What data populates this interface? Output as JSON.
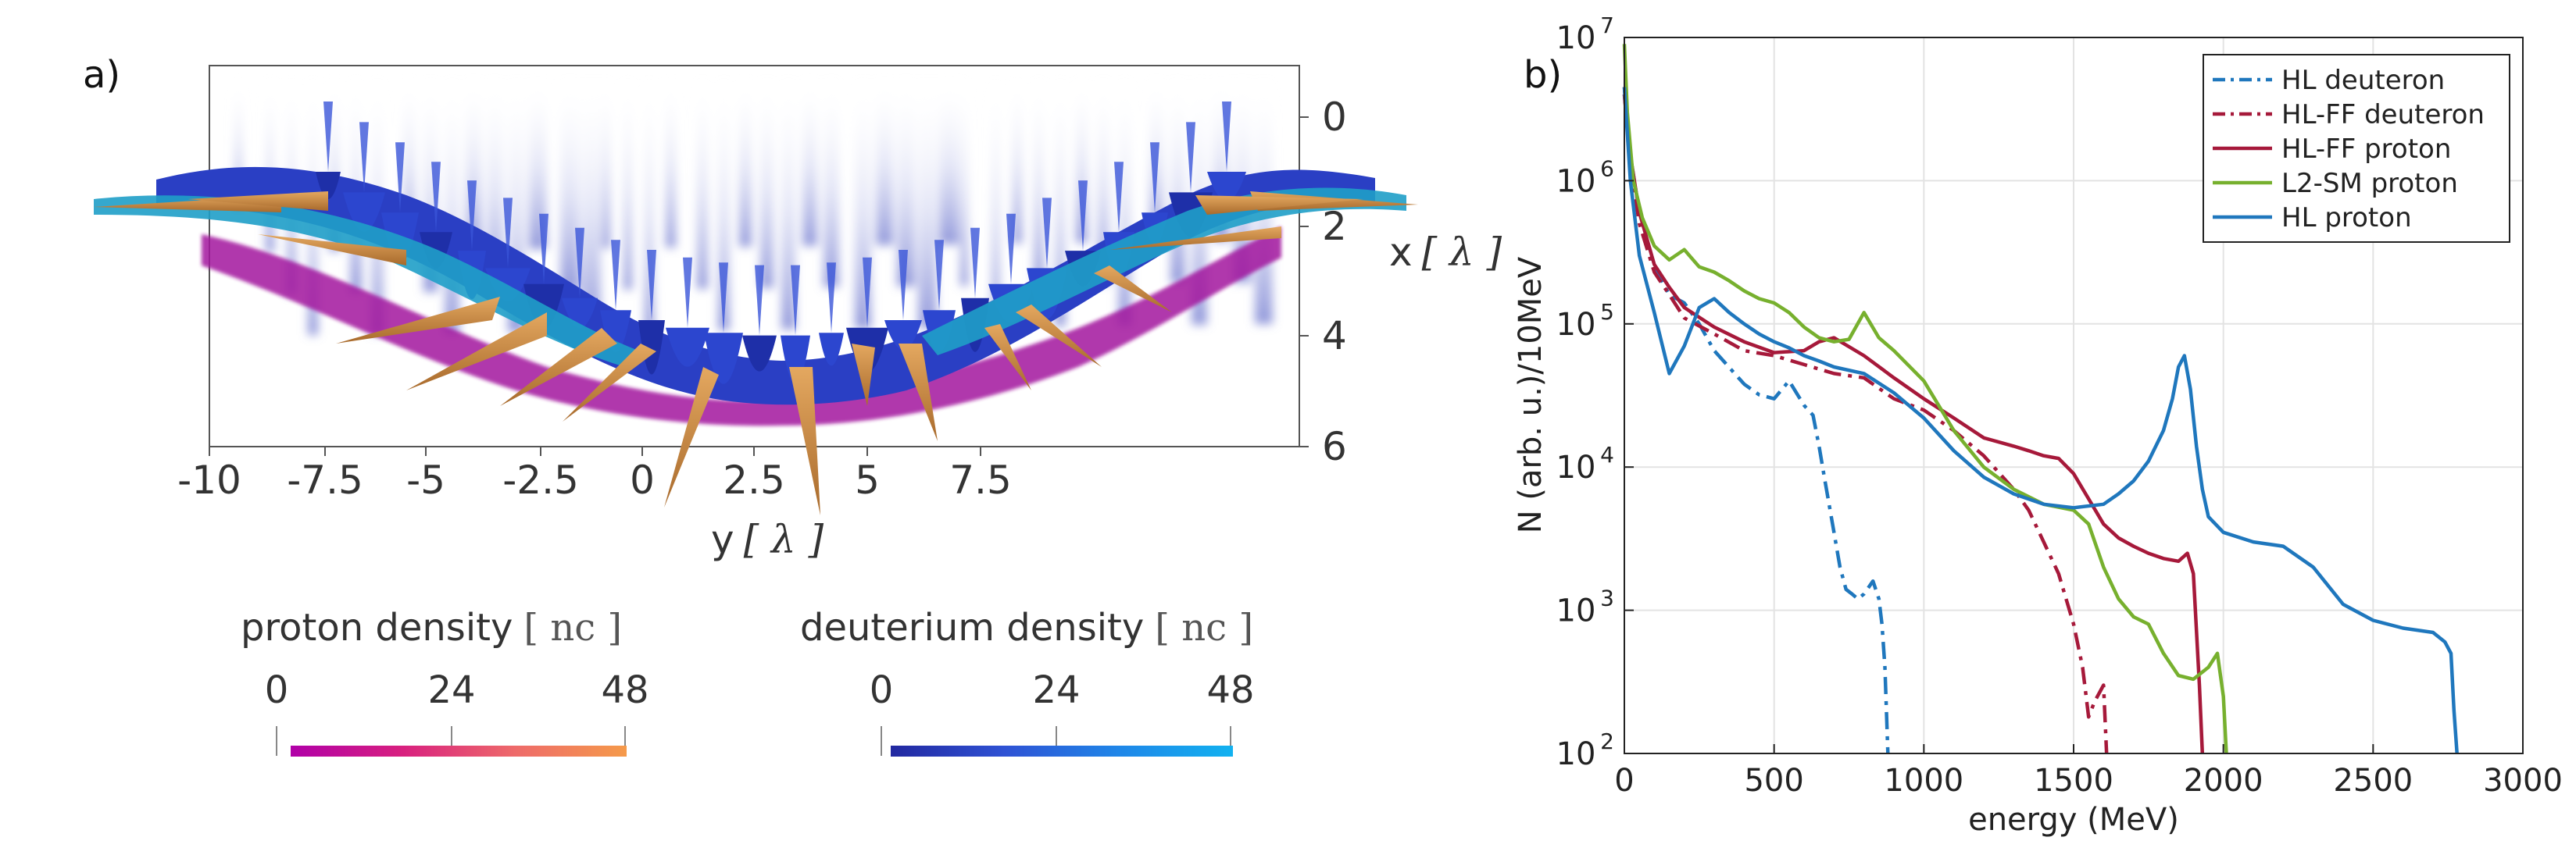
{
  "panel_a": {
    "label": "a)",
    "x_axis_label": "x",
    "y_axis_label": "y",
    "axis_unit": "[ λ ]",
    "x_ticks": [
      "0",
      "2",
      "4",
      "6"
    ],
    "y_ticks": [
      "-10",
      "-7.5",
      "-5",
      "-2.5",
      "0",
      "2.5",
      "5",
      "7.5"
    ],
    "colorbars": [
      {
        "label": "proton density",
        "unit": "[ nc ]",
        "ticks": [
          "0",
          "24",
          "48"
        ],
        "gradient": [
          "#b000a8",
          "#d8207f",
          "#ee6a6a",
          "#f59a4a"
        ]
      },
      {
        "label": "deuterium density",
        "unit": "[ nc ]",
        "ticks": [
          "0",
          "24",
          "48"
        ],
        "gradient": [
          "#2228a0",
          "#2f52d4",
          "#1f86e8",
          "#12b2f0"
        ]
      }
    ],
    "colors": {
      "proton_surface": "#c98a45",
      "deuteron_surface": "#2a3fc4",
      "cyan_surface": "#1f9fc8",
      "proton_haze": "#a3169e"
    }
  },
  "chart_data": {
    "type": "line",
    "panel_label": "b)",
    "xlabel": "energy (MeV)",
    "ylabel": "N (arb. u.)/10MeV",
    "xlim": [
      0,
      3000
    ],
    "ylim": [
      100,
      10000000
    ],
    "y_scale": "log",
    "x_ticks": [
      0,
      500,
      1000,
      1500,
      2000,
      2500,
      3000
    ],
    "x_tick_labels": [
      "0",
      "500",
      "1000",
      "1500",
      "2000",
      "2500",
      "3000"
    ],
    "y_ticks": [
      100,
      1000,
      10000,
      100000,
      1000000,
      10000000
    ],
    "y_tick_bases": [
      "10",
      "10",
      "10",
      "10",
      "10",
      "10"
    ],
    "y_tick_exponents": [
      "2",
      "3",
      "4",
      "5",
      "6",
      "7"
    ],
    "grid": true,
    "legend_position": "top-right",
    "series": [
      {
        "name": "HL deuteron",
        "color": "#1f77bd",
        "dash": "dashdot",
        "x": [
          0,
          20,
          50,
          100,
          150,
          200,
          250,
          300,
          400,
          450,
          500,
          550,
          600,
          630,
          650,
          670,
          700,
          720,
          740,
          760,
          780,
          800,
          830,
          850,
          860,
          870,
          880
        ],
        "y": [
          4000000,
          1500000,
          600000,
          250000,
          160000,
          140000,
          100000,
          65000,
          38000,
          32000,
          30000,
          40000,
          27000,
          23000,
          14000,
          8000,
          3500,
          2000,
          1400,
          1300,
          1200,
          1300,
          1600,
          1200,
          800,
          400,
          100
        ]
      },
      {
        "name": "HL-FF deuteron",
        "color": "#a6193a",
        "dash": "dashdot",
        "x": [
          0,
          20,
          50,
          100,
          150,
          200,
          300,
          400,
          500,
          600,
          700,
          800,
          900,
          1000,
          1100,
          1200,
          1300,
          1350,
          1400,
          1450,
          1500,
          1530,
          1550,
          1570,
          1600,
          1610
        ],
        "y": [
          4000000,
          1300000,
          500000,
          230000,
          160000,
          110000,
          85000,
          65000,
          60000,
          52000,
          45000,
          42000,
          30000,
          25000,
          18000,
          12000,
          7000,
          5000,
          3000,
          1800,
          800,
          400,
          180,
          230,
          300,
          100
        ]
      },
      {
        "name": "HL-FF proton",
        "color": "#a6193a",
        "dash": "solid",
        "x": [
          0,
          20,
          50,
          100,
          150,
          200,
          300,
          400,
          500,
          600,
          650,
          700,
          800,
          900,
          1000,
          1100,
          1200,
          1300,
          1350,
          1400,
          1450,
          1500,
          1550,
          1600,
          1650,
          1700,
          1750,
          1800,
          1850,
          1880,
          1900,
          1920,
          1930
        ],
        "y": [
          4500000,
          1500000,
          600000,
          260000,
          180000,
          130000,
          95000,
          75000,
          63000,
          65000,
          75000,
          80000,
          60000,
          42000,
          30000,
          22000,
          16000,
          14000,
          13000,
          12000,
          11500,
          9000,
          6000,
          4000,
          3200,
          2800,
          2500,
          2300,
          2200,
          2500,
          1800,
          300,
          100
        ]
      },
      {
        "name": "L2-SM proton",
        "color": "#77b02e",
        "dash": "solid",
        "x": [
          0,
          10,
          30,
          60,
          100,
          150,
          200,
          250,
          300,
          350,
          400,
          450,
          500,
          550,
          600,
          650,
          700,
          750,
          800,
          850,
          900,
          1000,
          1100,
          1200,
          1300,
          1400,
          1500,
          1550,
          1600,
          1650,
          1700,
          1750,
          1800,
          1850,
          1900,
          1950,
          1980,
          2000,
          2010
        ],
        "y": [
          9000000,
          3000000,
          1000000,
          550000,
          350000,
          280000,
          330000,
          250000,
          230000,
          200000,
          170000,
          150000,
          140000,
          120000,
          95000,
          80000,
          75000,
          78000,
          120000,
          80000,
          65000,
          40000,
          18000,
          10000,
          7000,
          5500,
          5000,
          4000,
          2000,
          1200,
          900,
          800,
          500,
          350,
          330,
          400,
          500,
          250,
          100
        ]
      },
      {
        "name": "HL proton",
        "color": "#1f77bd",
        "dash": "solid",
        "x": [
          0,
          20,
          50,
          100,
          150,
          200,
          250,
          300,
          350,
          400,
          450,
          500,
          550,
          600,
          650,
          700,
          800,
          900,
          1000,
          1100,
          1200,
          1300,
          1400,
          1500,
          1600,
          1650,
          1700,
          1750,
          1800,
          1830,
          1850,
          1870,
          1890,
          1910,
          1930,
          1950,
          2000,
          2100,
          2200,
          2300,
          2400,
          2500,
          2600,
          2700,
          2740,
          2760,
          2770,
          2780
        ],
        "y": [
          4500000,
          1000000,
          300000,
          120000,
          45000,
          70000,
          130000,
          150000,
          120000,
          100000,
          85000,
          75000,
          68000,
          60000,
          55000,
          50000,
          45000,
          33000,
          22000,
          13000,
          8500,
          6500,
          5500,
          5200,
          5500,
          6500,
          8000,
          11000,
          18000,
          30000,
          50000,
          60000,
          35000,
          14000,
          7000,
          4500,
          3500,
          3000,
          2800,
          2000,
          1100,
          850,
          750,
          700,
          600,
          500,
          200,
          100
        ]
      }
    ]
  }
}
